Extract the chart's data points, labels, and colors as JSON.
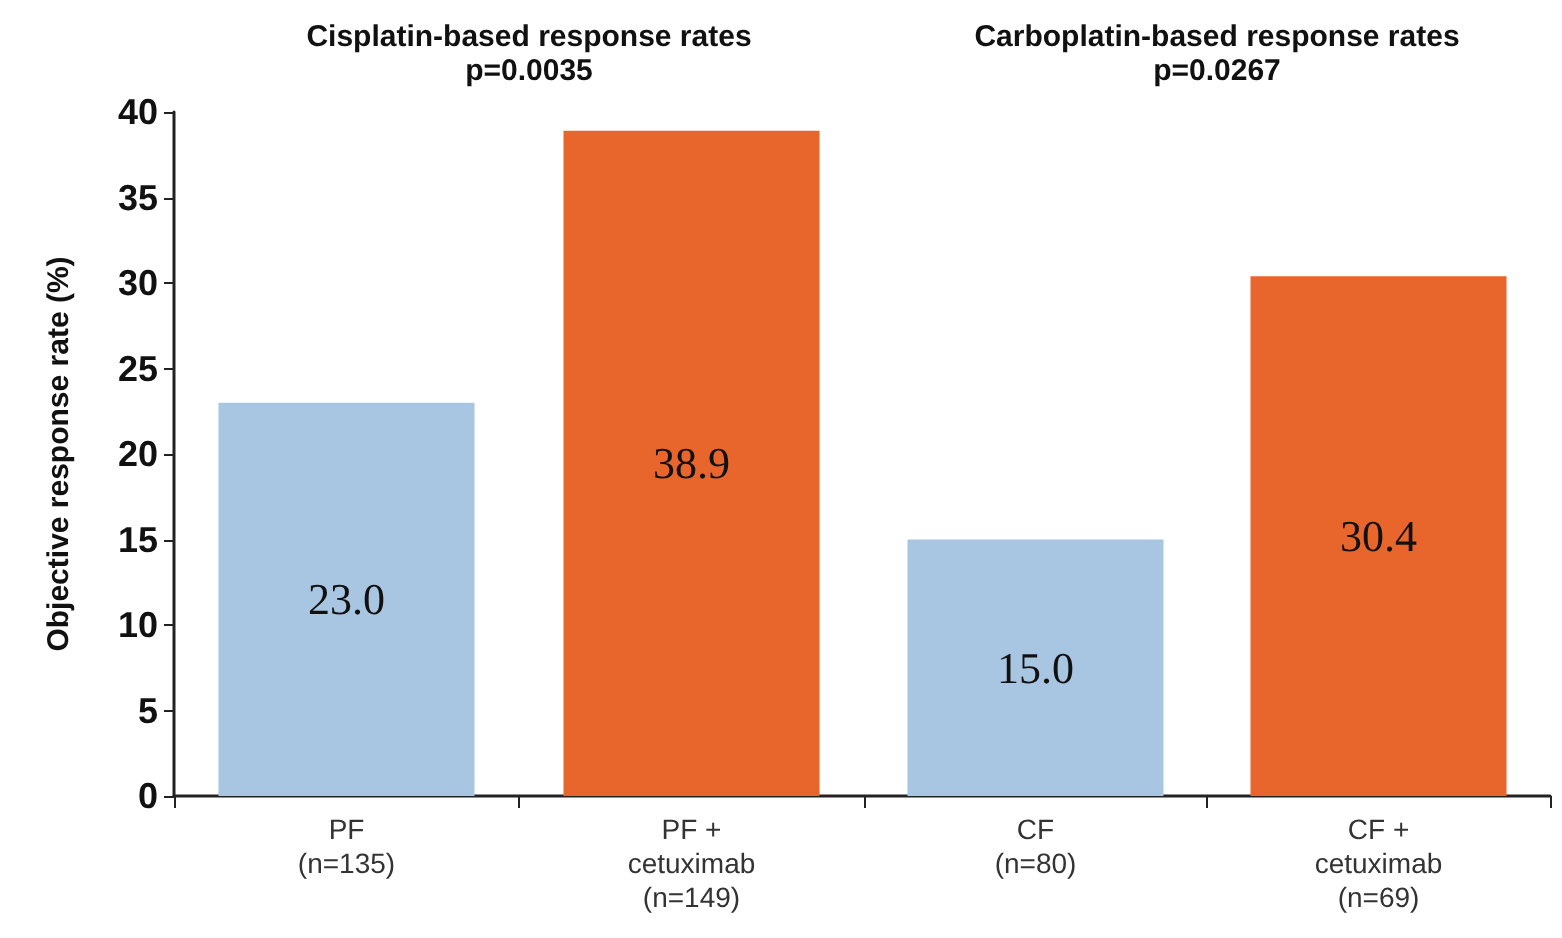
{
  "chart_data": [
    {
      "type": "bar",
      "title": "Cisplatin-based response rates",
      "subtitle": "p=0.0035",
      "ylabel": "Objective response rate (%)",
      "categories": [
        "PF\n(n=135)",
        "PF +\ncetuximab\n(n=149)"
      ],
      "values": [
        23,
        38.9
      ],
      "value_labels": [
        "23.0",
        "38.9"
      ],
      "colors": [
        "#a8c6e2",
        "#e8652b"
      ],
      "ylim": [
        0,
        40
      ],
      "yticks": [
        0,
        5,
        10,
        15,
        20,
        25,
        30,
        35,
        40
      ],
      "grid": false
    },
    {
      "type": "bar",
      "title": "Carboplatin-based response rates",
      "subtitle": "p=0.0267",
      "categories": [
        "CF\n(n=80)",
        "CF +\ncetuximab\n(n=69)"
      ],
      "values": [
        15,
        30.4
      ],
      "value_labels": [
        "15.0",
        "30.4"
      ],
      "colors": [
        "#a8c6e2",
        "#e8652b"
      ],
      "ylim": [
        0,
        40
      ],
      "yticks": [
        0,
        5,
        10,
        15,
        20,
        25,
        30,
        35,
        40
      ],
      "grid": false,
      "tick_labels": "x"
    }
  ]
}
